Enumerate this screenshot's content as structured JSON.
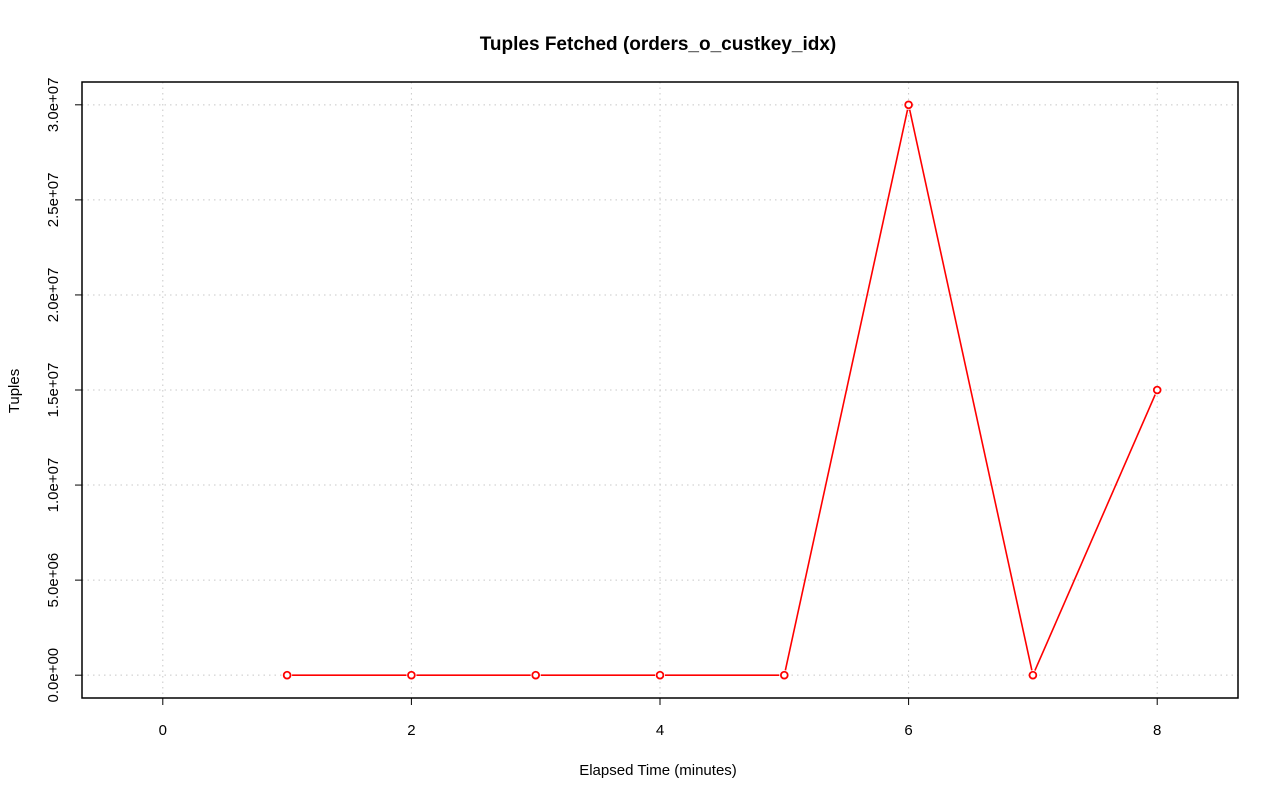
{
  "chart_data": {
    "type": "line",
    "title": "Tuples Fetched (orders_o_custkey_idx)",
    "xlabel": "Elapsed Time (minutes)",
    "ylabel": "Tuples",
    "xlim": [
      -0.65,
      8.65
    ],
    "ylim": [
      -1200000,
      31200000
    ],
    "x_ticks": [
      0,
      2,
      4,
      6,
      8
    ],
    "x_tick_labels": [
      "0",
      "2",
      "4",
      "6",
      "8"
    ],
    "y_ticks": [
      0,
      5000000,
      10000000,
      15000000,
      20000000,
      25000000,
      30000000
    ],
    "y_tick_labels": [
      "0.0e+00",
      "5.0e+06",
      "1.0e+07",
      "1.5e+07",
      "2.0e+07",
      "2.5e+07",
      "3.0e+07"
    ],
    "grid": true,
    "series": [
      {
        "x": [
          1,
          2,
          3,
          4,
          5,
          6,
          7,
          8
        ],
        "y": [
          0,
          0,
          0,
          0,
          0,
          30000000,
          0,
          15000000
        ],
        "color": "#ff0000",
        "marker": "open-circle"
      }
    ]
  }
}
